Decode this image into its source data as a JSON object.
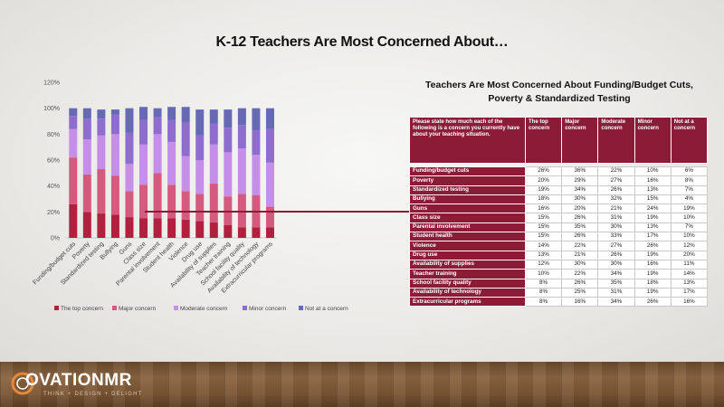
{
  "slide": {
    "title": "K-12 Teachers Are Most Concerned About…",
    "logo_text": "OVATIONMR",
    "logo_subtitle": "THINK + DESIGN + DELIGHT"
  },
  "table": {
    "title_line1": "Teachers Are Most Concerned About Funding/Budget Cuts,",
    "title_line2": "Poverty & Standardized Testing",
    "question": "Please state how much each of the following is a concern you currently have about your teaching situation.",
    "headers": [
      "The top concern",
      "Major concern",
      "Moderate concern",
      "Minor concern",
      "Not at a concern"
    ],
    "rows": [
      {
        "label": "Funding/budget cuts",
        "values": [
          "26%",
          "36%",
          "22%",
          "10%",
          "6%"
        ]
      },
      {
        "label": "Poverty",
        "values": [
          "20%",
          "29%",
          "27%",
          "16%",
          "8%"
        ]
      },
      {
        "label": "Standardized testing",
        "values": [
          "19%",
          "34%",
          "26%",
          "13%",
          "7%"
        ]
      },
      {
        "label": "Bullying",
        "values": [
          "18%",
          "30%",
          "32%",
          "15%",
          "4%"
        ]
      },
      {
        "label": "Guns",
        "values": [
          "16%",
          "20%",
          "21%",
          "24%",
          "19%"
        ]
      },
      {
        "label": "Class size",
        "values": [
          "15%",
          "26%",
          "31%",
          "19%",
          "10%"
        ]
      },
      {
        "label": "Parental involvement",
        "values": [
          "15%",
          "35%",
          "30%",
          "13%",
          "7%"
        ]
      },
      {
        "label": "Student health",
        "values": [
          "15%",
          "26%",
          "33%",
          "17%",
          "10%"
        ]
      },
      {
        "label": "Violence",
        "values": [
          "14%",
          "22%",
          "27%",
          "26%",
          "12%"
        ]
      },
      {
        "label": "Drug use",
        "values": [
          "13%",
          "21%",
          "26%",
          "19%",
          "20%"
        ]
      },
      {
        "label": "Availability of supplies",
        "values": [
          "12%",
          "30%",
          "30%",
          "16%",
          "11%"
        ]
      },
      {
        "label": "Teacher training",
        "values": [
          "10%",
          "22%",
          "34%",
          "19%",
          "14%"
        ]
      },
      {
        "label": "School facility quality",
        "values": [
          "8%",
          "26%",
          "35%",
          "18%",
          "13%"
        ]
      },
      {
        "label": "Availability of technology",
        "values": [
          "8%",
          "25%",
          "31%",
          "19%",
          "17%"
        ]
      },
      {
        "label": "Extracurricular programs",
        "values": [
          "8%",
          "16%",
          "34%",
          "26%",
          "16%"
        ]
      }
    ]
  },
  "chart_data": {
    "type": "bar",
    "stacked": true,
    "categories": [
      "Funding/budget cuts",
      "Poverty",
      "Standardized testing",
      "Bullying",
      "Guns",
      "Class size",
      "Parental involvement",
      "Student health",
      "Violence",
      "Drug use",
      "Availability of supplies",
      "Teacher training",
      "School facility quality",
      "Availability of technology",
      "Extracurricular programs"
    ],
    "series": [
      {
        "name": "The top concern",
        "color": "#b0203f",
        "values": [
          26,
          20,
          19,
          18,
          16,
          15,
          15,
          15,
          14,
          13,
          12,
          10,
          8,
          8,
          8
        ]
      },
      {
        "name": "Major concern",
        "color": "#d45a7e",
        "values": [
          36,
          29,
          34,
          30,
          20,
          26,
          35,
          26,
          22,
          21,
          30,
          22,
          26,
          25,
          16
        ]
      },
      {
        "name": "Moderate concern",
        "color": "#c58ee8",
        "values": [
          22,
          27,
          26,
          32,
          21,
          31,
          30,
          33,
          27,
          26,
          30,
          34,
          35,
          31,
          34
        ]
      },
      {
        "name": "Minor concern",
        "color": "#8f6dcf",
        "values": [
          10,
          16,
          13,
          15,
          24,
          19,
          13,
          17,
          26,
          19,
          16,
          19,
          18,
          19,
          26
        ]
      },
      {
        "name": "Not at a concern",
        "color": "#6669b3",
        "values": [
          6,
          8,
          7,
          4,
          19,
          10,
          7,
          10,
          12,
          20,
          11,
          14,
          13,
          17,
          16
        ]
      }
    ],
    "yticks": [
      "0%",
      "20%",
      "40%",
      "60%",
      "80%",
      "100%",
      "120%"
    ],
    "ylim": [
      0,
      120
    ],
    "legend_position": "bottom",
    "grid": false
  }
}
